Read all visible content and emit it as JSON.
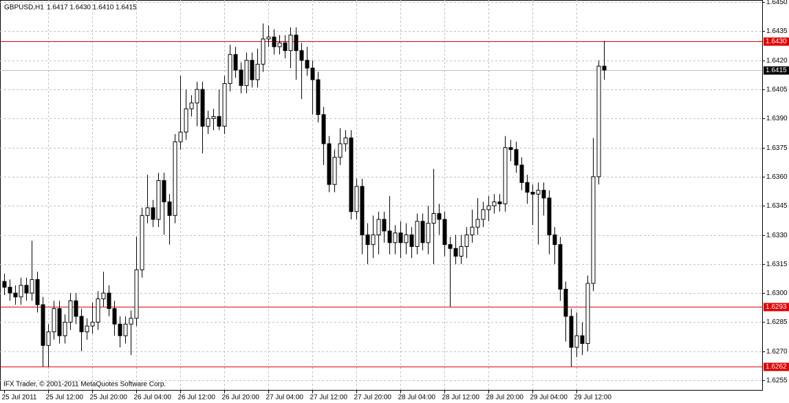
{
  "chart_data": {
    "type": "candlestick",
    "header_symbol": "GBPUSD,H1",
    "header_prices": "1.6417 1.6430 1.6410 1.6415",
    "footer": "IFX Trader, © 2001-2011 MetaQuotes Software Corp.",
    "grid": true,
    "candle_color": "#000000",
    "categories": [
      "25 Jul 2011",
      null,
      null,
      null,
      null,
      null,
      null,
      null,
      "25 Jul 12:00",
      null,
      null,
      null,
      null,
      null,
      null,
      null,
      "25 Jul 20:00",
      null,
      null,
      null,
      null,
      null,
      null,
      null,
      "26 Jul 04:00",
      null,
      null,
      null,
      null,
      null,
      null,
      null,
      "26 Jul 12:00",
      null,
      null,
      null,
      null,
      null,
      null,
      null,
      "26 Jul 20:00",
      null,
      null,
      null,
      null,
      null,
      null,
      null,
      "27 Jul 04:00",
      null,
      null,
      null,
      null,
      null,
      null,
      null,
      "27 Jul 12:00",
      null,
      null,
      null,
      null,
      null,
      null,
      null,
      "27 Jul 20:00",
      null,
      null,
      null,
      null,
      null,
      null,
      null,
      "28 Jul 04:00",
      null,
      null,
      null,
      null,
      null,
      null,
      null,
      "28 Jul 12:00",
      null,
      null,
      null,
      null,
      null,
      null,
      null,
      "28 Jul 20:00",
      null,
      null,
      null,
      null,
      null,
      null,
      null,
      "29 Jul 04:00",
      null,
      null,
      null,
      null,
      null,
      null,
      null,
      "29 Jul 12:00",
      null,
      null,
      null,
      null,
      null
    ],
    "open": [
      1.6306,
      1.6303,
      1.63,
      1.6298,
      1.6304,
      1.63,
      1.6307,
      1.6294,
      1.6273,
      1.628,
      1.6292,
      1.6278,
      1.6285,
      1.6296,
      1.6288,
      1.628,
      1.6283,
      1.6285,
      1.6297,
      1.63,
      1.6292,
      1.6284,
      1.6278,
      1.6284,
      1.6287,
      1.6312,
      1.634,
      1.6344,
      1.6338,
      1.6358,
      1.6347,
      1.634,
      1.6378,
      1.6383,
      1.6395,
      1.6398,
      1.6405,
      1.6386,
      1.639,
      1.6391,
      1.6386,
      1.6408,
      1.6423,
      1.6415,
      1.6407,
      1.642,
      1.641,
      1.6418,
      1.6431,
      1.6432,
      1.6427,
      1.6429,
      1.6425,
      1.6433,
      1.6425,
      1.642,
      1.6416,
      1.641,
      1.6392,
      1.6377,
      1.6356,
      1.637,
      1.6377,
      1.638,
      1.6342,
      1.6355,
      1.633,
      1.6325,
      1.633,
      1.6338,
      1.6332,
      1.6326,
      1.6331,
      1.6326,
      1.633,
      1.6324,
      1.6337,
      1.6326,
      1.6336,
      1.6341,
      1.6338,
      1.6325,
      1.6323,
      1.6319,
      1.6324,
      1.633,
      1.6334,
      1.6338,
      1.6343,
      1.6345,
      1.6347,
      1.6346,
      1.6375,
      1.6374,
      1.6366,
      1.6357,
      1.6352,
      1.6351,
      1.6353,
      1.6349,
      1.633,
      1.6325,
      1.6302,
      1.6288,
      1.6272,
      1.6278,
      1.6274,
      1.6305,
      1.636,
      1.6417
    ],
    "high": [
      1.631,
      1.6307,
      1.6304,
      1.6308,
      1.6308,
      1.6327,
      1.6311,
      1.6298,
      1.6284,
      1.6296,
      1.6296,
      1.6289,
      1.63,
      1.63,
      1.6292,
      1.6287,
      1.6295,
      1.6301,
      1.6311,
      1.6304,
      1.6296,
      1.6288,
      1.6288,
      1.6291,
      1.6329,
      1.6344,
      1.6361,
      1.6348,
      1.6362,
      1.6362,
      1.6351,
      1.6382,
      1.6412,
      1.6405,
      1.6402,
      1.6409,
      1.6409,
      1.6394,
      1.6395,
      1.6405,
      1.6412,
      1.6428,
      1.6427,
      1.6419,
      1.6424,
      1.6424,
      1.6426,
      1.6439,
      1.6438,
      1.6436,
      1.6433,
      1.6433,
      1.6437,
      1.6437,
      1.6429,
      1.6427,
      1.642,
      1.6414,
      1.6396,
      1.6381,
      1.6374,
      1.6385,
      1.6384,
      1.6384,
      1.6359,
      1.6359,
      1.6336,
      1.634,
      1.6342,
      1.6342,
      1.635,
      1.6335,
      1.6337,
      1.6336,
      1.6334,
      1.6341,
      1.6341,
      1.6345,
      1.6364,
      1.6346,
      1.6342,
      1.6329,
      1.633,
      1.633,
      1.6334,
      1.6343,
      1.6349,
      1.6347,
      1.635,
      1.6351,
      1.6351,
      1.6381,
      1.6379,
      1.6378,
      1.637,
      1.6361,
      1.6356,
      1.6357,
      1.6357,
      1.6353,
      1.6334,
      1.6329,
      1.6306,
      1.6292,
      1.629,
      1.6285,
      1.6309,
      1.638,
      1.642,
      1.643
    ],
    "low": [
      1.6299,
      1.6296,
      1.6294,
      1.6294,
      1.6296,
      1.6296,
      1.629,
      1.6262,
      1.6262,
      1.6276,
      1.6274,
      1.6274,
      1.6281,
      1.6284,
      1.627,
      1.6276,
      1.6279,
      1.6281,
      1.6293,
      1.6288,
      1.6278,
      1.6272,
      1.6274,
      1.6268,
      1.6283,
      1.6308,
      1.6336,
      1.6334,
      1.6334,
      1.633,
      1.6325,
      1.6336,
      1.6374,
      1.6379,
      1.6391,
      1.6386,
      1.6372,
      1.6382,
      1.6384,
      1.6384,
      1.6382,
      1.6404,
      1.6411,
      1.6403,
      1.6403,
      1.6406,
      1.6406,
      1.6414,
      1.6427,
      1.6423,
      1.6423,
      1.6421,
      1.6416,
      1.641,
      1.64,
      1.6412,
      1.6392,
      1.6388,
      1.6366,
      1.6352,
      1.6352,
      1.6366,
      1.6373,
      1.6338,
      1.6338,
      1.632,
      1.6315,
      1.6318,
      1.632,
      1.6326,
      1.632,
      1.632,
      1.6318,
      1.632,
      1.6318,
      1.632,
      1.6322,
      1.632,
      1.6315,
      1.633,
      1.6319,
      1.6293,
      1.6315,
      1.6315,
      1.6318,
      1.6326,
      1.633,
      1.6334,
      1.6337,
      1.6341,
      1.6342,
      1.6342,
      1.6368,
      1.6362,
      1.6353,
      1.6346,
      1.6335,
      1.6325,
      1.634,
      1.632,
      1.6315,
      1.6296,
      1.6275,
      1.6262,
      1.6267,
      1.6268,
      1.627,
      1.6301,
      1.6356,
      1.641
    ],
    "close": [
      1.6303,
      1.63,
      1.6298,
      1.6304,
      1.63,
      1.6307,
      1.6294,
      1.6273,
      1.628,
      1.6292,
      1.6278,
      1.6285,
      1.6296,
      1.6288,
      1.628,
      1.6283,
      1.6285,
      1.6297,
      1.63,
      1.6292,
      1.6284,
      1.6278,
      1.6284,
      1.6287,
      1.6312,
      1.634,
      1.6344,
      1.6338,
      1.6358,
      1.6347,
      1.634,
      1.6378,
      1.6383,
      1.6395,
      1.6398,
      1.6405,
      1.6386,
      1.639,
      1.6391,
      1.6386,
      1.6408,
      1.6423,
      1.6415,
      1.6407,
      1.642,
      1.641,
      1.6418,
      1.6431,
      1.6432,
      1.6427,
      1.6429,
      1.6425,
      1.6433,
      1.6425,
      1.642,
      1.6416,
      1.641,
      1.6392,
      1.6377,
      1.6356,
      1.637,
      1.6377,
      1.638,
      1.6342,
      1.6355,
      1.633,
      1.6325,
      1.633,
      1.6338,
      1.6332,
      1.6326,
      1.6331,
      1.6326,
      1.633,
      1.6324,
      1.6337,
      1.6326,
      1.6336,
      1.6341,
      1.6338,
      1.6325,
      1.6323,
      1.6319,
      1.6324,
      1.633,
      1.6334,
      1.6338,
      1.6343,
      1.6345,
      1.6347,
      1.6346,
      1.6375,
      1.6374,
      1.6366,
      1.6357,
      1.6352,
      1.6351,
      1.6353,
      1.6349,
      1.633,
      1.6325,
      1.6302,
      1.6288,
      1.6272,
      1.6278,
      1.6274,
      1.6305,
      1.636,
      1.6417,
      1.6415
    ],
    "ylim": [
      1.62497,
      1.64511
    ],
    "yticks": [
      {
        "value": 1.645,
        "label": "1.6450"
      },
      1.6435,
      {
        "value": 1.642,
        "label": "1.6420"
      },
      1.6405,
      {
        "value": 1.639,
        "label": "1.6390"
      },
      1.6375,
      {
        "value": 1.636,
        "label": "1.6360"
      },
      1.6345,
      {
        "value": 1.633,
        "label": "1.6330"
      },
      1.6315,
      {
        "value": 1.63,
        "label": "1.6300"
      },
      1.6285,
      {
        "value": 1.627,
        "label": "1.6270"
      },
      1.6255
    ],
    "hlines": [
      {
        "value": 1.643,
        "label": "1.6430",
        "color": "#e00000"
      },
      {
        "value": 1.6293,
        "label": "1.6293",
        "color": "#e00000"
      },
      {
        "value": 1.6262,
        "label": "1.6262",
        "color": "#e00000"
      }
    ],
    "bid_color": "#c0c0c0"
  }
}
